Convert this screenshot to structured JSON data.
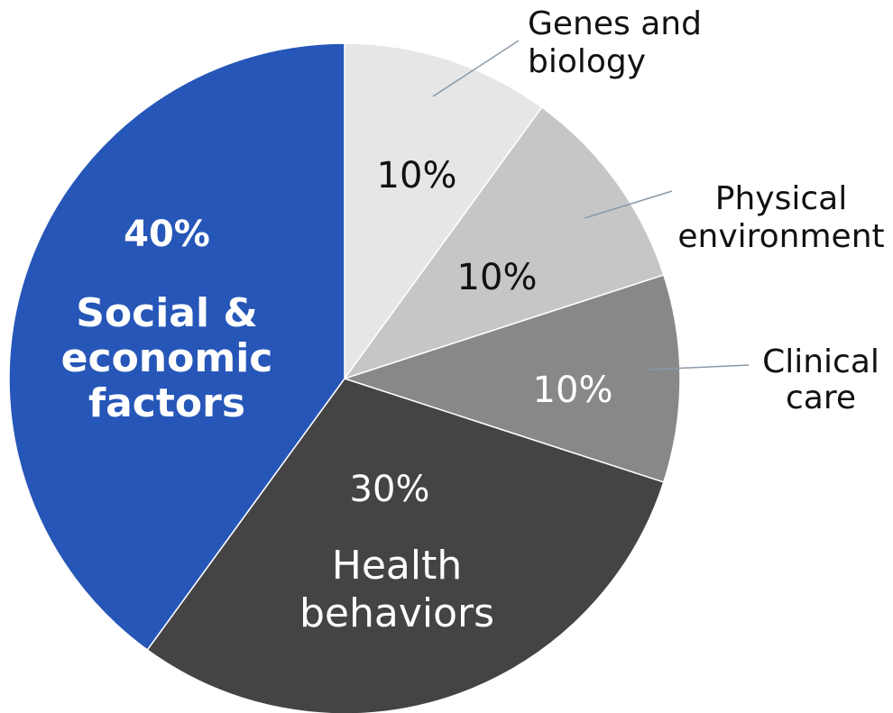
{
  "chart_data": {
    "type": "pie",
    "categories": [
      "Genes and\nbiology",
      "Physical\nenvironment",
      "Clinical\ncare",
      "Health\nbehaviors",
      "Social &\neconomic\nfactors"
    ],
    "values": [
      10,
      10,
      10,
      30,
      40
    ],
    "value_labels": [
      "10%",
      "10%",
      "10%",
      "30%",
      "40%"
    ],
    "colors": [
      "#e6e6e6",
      "#c6c6c6",
      "#888888",
      "#444444",
      "#2656b8"
    ]
  }
}
